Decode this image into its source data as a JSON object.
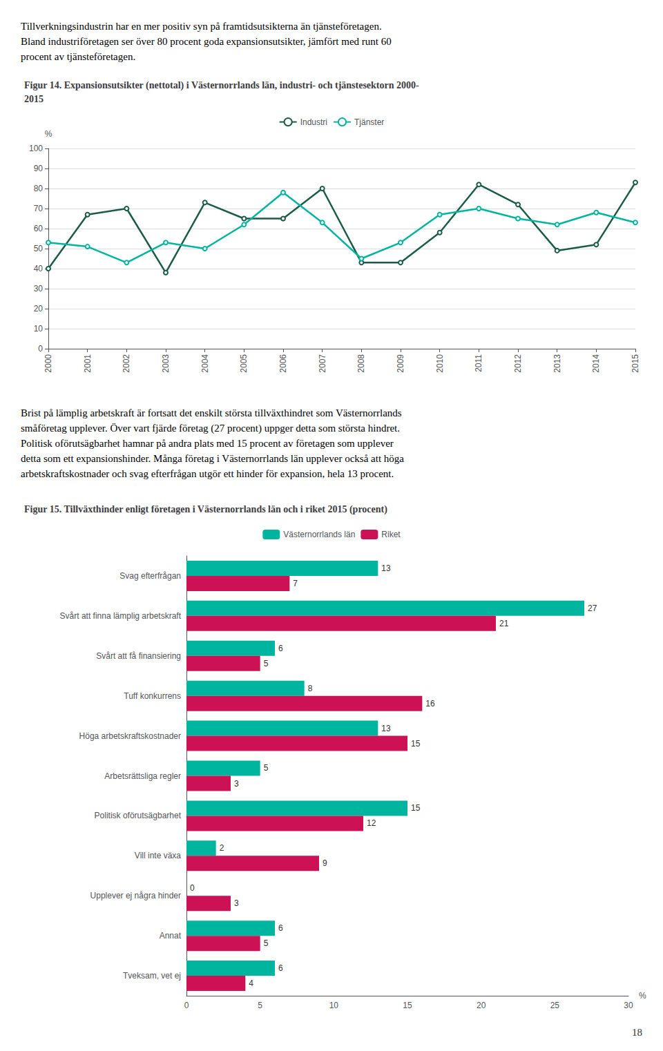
{
  "chart_data": [
    {
      "type": "line",
      "title": "Figur 14. Expansionsutsikter (nettotal) i Västernorrlands län, industri- och tjänstesektorn 2000-\n2015",
      "annotations": [
        "Tillverkningsindustrin har en mer positiv syn på framtidsutsikterna än tjänsteföretagen.",
        "Bland industriföretagen ser över 80 procent goda expansionsutsikter, jämfört med runt 60",
        "procent av tjänsteföretagen."
      ],
      "x": [
        2000,
        2001,
        2002,
        2003,
        2004,
        2005,
        2006,
        2007,
        2008,
        2009,
        2010,
        2011,
        2012,
        2013,
        2014,
        2015
      ],
      "xlim": [
        2000,
        2015
      ],
      "xticks": [
        2000,
        2001,
        2002,
        2003,
        2004,
        2005,
        2006,
        2007,
        2008,
        2009,
        2010,
        2011,
        2012,
        2013,
        2014,
        2015
      ],
      "ylabel": "%",
      "ylim": [
        0,
        100
      ],
      "yticks": [
        0,
        10,
        20,
        30,
        40,
        50,
        60,
        70,
        80,
        90,
        100
      ],
      "grid": true,
      "legend": "top",
      "series": [
        {
          "name": "Industri",
          "color": "#1a5c47",
          "values": [
            40,
            67,
            70,
            38,
            73,
            65,
            65,
            80,
            43,
            43,
            58,
            82,
            72,
            49,
            52,
            83
          ]
        },
        {
          "name": "Tjänster",
          "color": "#00b5a0",
          "values": [
            53,
            51,
            43,
            53,
            50,
            62,
            78,
            63,
            45,
            53,
            67,
            70,
            65,
            62,
            68,
            63
          ]
        }
      ]
    },
    {
      "type": "bar",
      "orientation": "horizontal",
      "title": "Figur 15. Tillväxthinder enligt företagen i Västernorrlands län och i riket 2015 (procent)",
      "annotations": [
        "Brist på lämplig arbetskraft är fortsatt det enskilt största tillväxthindret som Västernorrlands",
        "småföretag upplever. Över vart fjärde företag (27 procent) uppger detta som största hindret.",
        "Politisk oförutsägbarhet hamnar på andra plats med 15 procent av företagen som upplever",
        "detta som ett expansionshinder. Många företag i Västernorrlands län upplever också att höga",
        "arbetskraftskostnader och svag efterfrågan utgör ett hinder för expansion, hela 13 procent."
      ],
      "categories": [
        "Svag efterfrågan",
        "Svårt att finna lämplig arbetskraft",
        "Svårt att få finansiering",
        "Tuff konkurrens",
        "Höga arbetskraftskostnader",
        "Arbetsrättsliga regler",
        "Politisk oförutsägbarhet",
        "Vill inte växa",
        "Upplever ej några hinder",
        "Annat",
        "Tveksam, vet ej"
      ],
      "xlabel": "%",
      "xlim": [
        0,
        30
      ],
      "xticks": [
        0,
        5,
        10,
        15,
        20,
        25,
        30
      ],
      "grid": false,
      "legend": "top",
      "data_labels": true,
      "series": [
        {
          "name": "Västernorrlands län",
          "color": "#00b5a0",
          "values": [
            13,
            27,
            6,
            8,
            13,
            5,
            15,
            2,
            0,
            6,
            6
          ]
        },
        {
          "name": "Riket",
          "color": "#cc1155",
          "values": [
            7,
            21,
            5,
            16,
            15,
            3,
            12,
            9,
            3,
            5,
            4
          ]
        }
      ]
    }
  ],
  "page_number": "18"
}
